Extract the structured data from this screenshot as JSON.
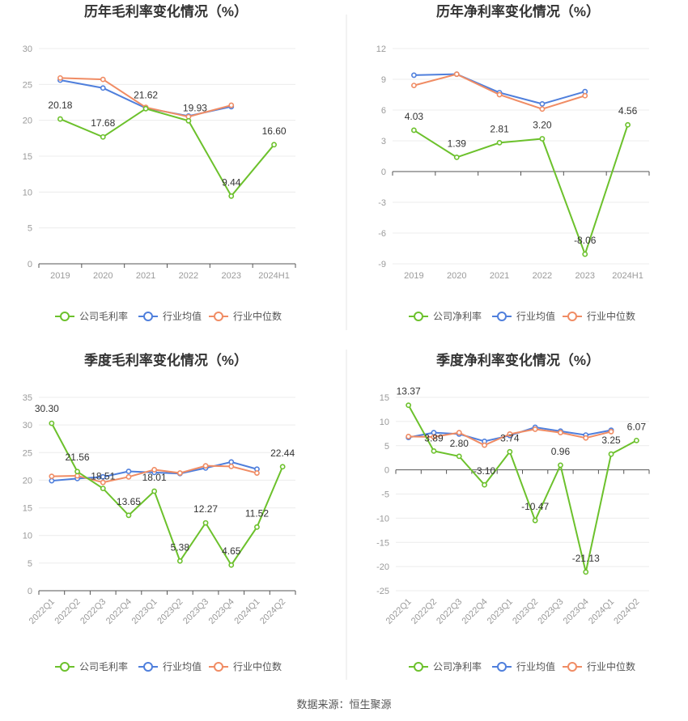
{
  "source": "数据来源：恒生聚源",
  "colors": {
    "company": "#6cc12c",
    "avg": "#4f7fdc",
    "median": "#f08c64",
    "divider": "#e6e6e6"
  },
  "legend": {
    "company_gross": "公司毛利率",
    "company_net": "公司净利率",
    "avg": "行业均值",
    "median": "行业中位数"
  },
  "chart_data": [
    {
      "type": "line",
      "title": "历年毛利率变化情况（%）",
      "categories": [
        "2019",
        "2020",
        "2021",
        "2022",
        "2023",
        "2024H1"
      ],
      "ylim": [
        0,
        30
      ],
      "yticks": [
        0,
        5,
        10,
        15,
        20,
        25,
        30
      ],
      "grid": true,
      "legend_position": "bottom",
      "series": [
        {
          "name": "公司毛利率",
          "values": [
            20.18,
            17.68,
            21.62,
            19.93,
            9.44,
            16.6
          ],
          "labels": [
            "20.18",
            "17.68",
            "21.62",
            "19.93",
            "9.44",
            "16.60"
          ]
        },
        {
          "name": "行业均值",
          "values": [
            25.6,
            24.5,
            21.7,
            20.6,
            21.9,
            null
          ]
        },
        {
          "name": "行业中位数",
          "values": [
            25.9,
            25.7,
            21.8,
            20.5,
            22.1,
            null
          ]
        }
      ]
    },
    {
      "type": "line",
      "title": "历年净利率变化情况（%）",
      "categories": [
        "2019",
        "2020",
        "2021",
        "2022",
        "2023",
        "2024H1"
      ],
      "ylim": [
        -9,
        12
      ],
      "yticks": [
        -9,
        -6,
        -3,
        0,
        3,
        6,
        9,
        12
      ],
      "grid": true,
      "legend_position": "bottom",
      "series": [
        {
          "name": "公司净利率",
          "values": [
            4.03,
            1.39,
            2.81,
            3.2,
            -8.06,
            4.56
          ],
          "labels": [
            "4.03",
            "1.39",
            "2.81",
            "3.20",
            "-8.06",
            "4.56"
          ]
        },
        {
          "name": "行业均值",
          "values": [
            9.4,
            9.5,
            7.7,
            6.6,
            7.8,
            null
          ]
        },
        {
          "name": "行业中位数",
          "values": [
            8.4,
            9.5,
            7.5,
            6.1,
            7.4,
            null
          ]
        }
      ]
    },
    {
      "type": "line",
      "title": "季度毛利率变化情况（%）",
      "categories": [
        "2022Q1",
        "2022Q2",
        "2022Q3",
        "2022Q4",
        "2023Q1",
        "2023Q2",
        "2023Q3",
        "2023Q4",
        "2024Q1",
        "2024Q2"
      ],
      "ylim": [
        0,
        35
      ],
      "yticks": [
        0,
        5,
        10,
        15,
        20,
        25,
        30,
        35
      ],
      "grid": true,
      "legend_position": "bottom",
      "series": [
        {
          "name": "公司毛利率",
          "values": [
            30.3,
            21.56,
            18.51,
            13.65,
            18.01,
            5.38,
            12.27,
            4.65,
            11.52,
            22.44
          ],
          "labels": [
            "30.30",
            "21.56",
            "18.51",
            "13.65",
            "18.01",
            "5.38",
            "12.27",
            "4.65",
            "11.52",
            "22.44"
          ]
        },
        {
          "name": "行业均值",
          "values": [
            19.9,
            20.3,
            20.6,
            21.6,
            21.4,
            21.2,
            22.2,
            23.3,
            22.0,
            null
          ]
        },
        {
          "name": "行业中位数",
          "values": [
            20.7,
            20.8,
            19.6,
            20.6,
            21.9,
            21.3,
            22.6,
            22.5,
            21.3,
            null
          ]
        }
      ]
    },
    {
      "type": "line",
      "title": "季度净利率变化情况（%）",
      "categories": [
        "2022Q1",
        "2022Q2",
        "2022Q3",
        "2022Q4",
        "2023Q1",
        "2023Q2",
        "2023Q3",
        "2023Q4",
        "2024Q1",
        "2024Q2"
      ],
      "ylim": [
        -25,
        15
      ],
      "yticks": [
        -25,
        -20,
        -15,
        -10,
        -5,
        0,
        5,
        10,
        15
      ],
      "grid": true,
      "legend_position": "bottom",
      "series": [
        {
          "name": "公司净利率",
          "values": [
            13.37,
            3.89,
            2.8,
            -3.1,
            3.74,
            -10.47,
            0.96,
            -21.13,
            3.25,
            6.07
          ],
          "labels": [
            "13.37",
            "3.89",
            "2.80",
            "-3.10",
            "3.74",
            "-10.47",
            "0.96",
            "-21.13",
            "3.25",
            "6.07"
          ]
        },
        {
          "name": "行业均值",
          "values": [
            6.7,
            7.7,
            7.4,
            5.9,
            7.1,
            8.8,
            8.0,
            7.2,
            8.2,
            null
          ]
        },
        {
          "name": "行业中位数",
          "values": [
            6.9,
            6.8,
            7.7,
            5.1,
            7.4,
            8.4,
            7.7,
            6.6,
            7.9,
            null
          ]
        }
      ]
    }
  ]
}
